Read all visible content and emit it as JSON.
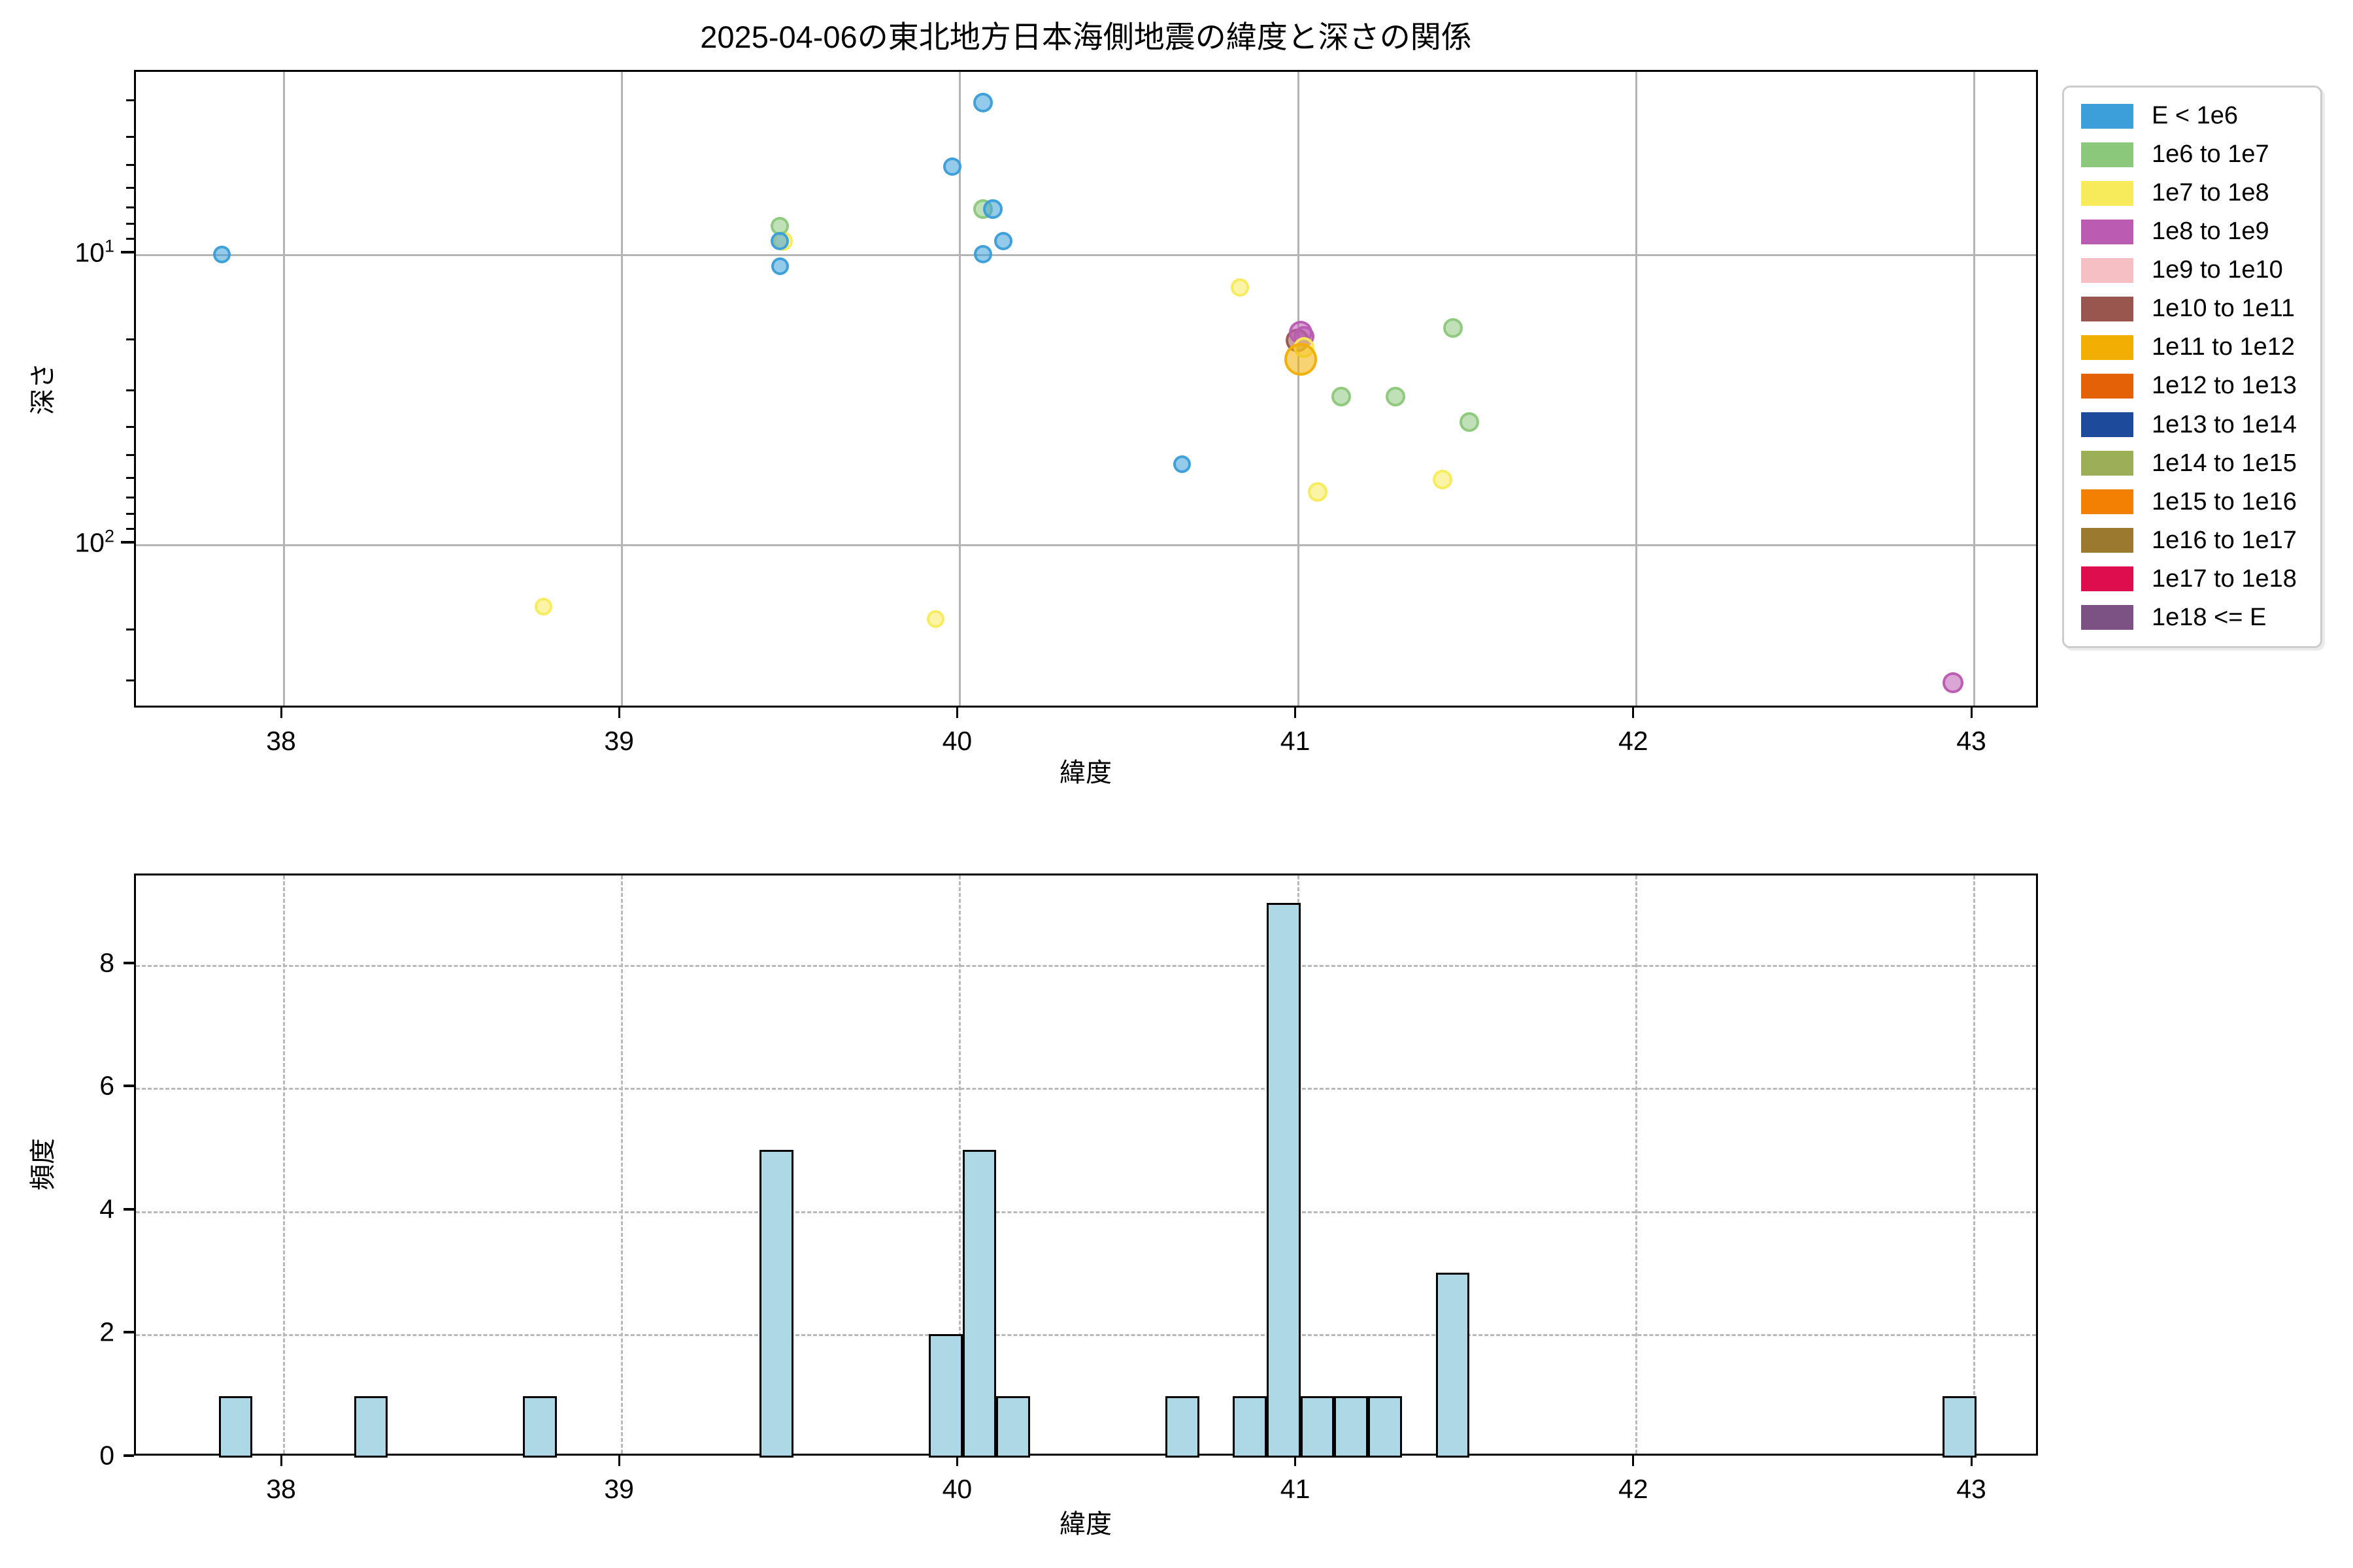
{
  "figure": {
    "title": "2025-04-06の東北地方日本海側地震の緯度と深さの関係"
  },
  "scatter_axis": {
    "xlabel": "緯度",
    "ylabel": "深さ",
    "x_ticks": [
      "38",
      "39",
      "40",
      "41",
      "42",
      "43"
    ],
    "y_major_ticks": [
      {
        "value": 10,
        "base": "10",
        "exp": "1"
      },
      {
        "value": 100,
        "base": "10",
        "exp": "2"
      }
    ],
    "y_minor_tick_depths": [
      3,
      4,
      5,
      6,
      7,
      8,
      9,
      20,
      30,
      40,
      50,
      60,
      70,
      80,
      90,
      200,
      300
    ]
  },
  "hist_axis": {
    "xlabel": "緯度",
    "ylabel": "頻度",
    "x_ticks": [
      "38",
      "39",
      "40",
      "41",
      "42",
      "43"
    ],
    "y_ticks": [
      "0",
      "2",
      "4",
      "6",
      "8"
    ]
  },
  "legend": {
    "entries": [
      {
        "label": "E < 1e6",
        "color": "#3c9fd9"
      },
      {
        "label": "1e6 to 1e7",
        "color": "#8cc87b"
      },
      {
        "label": "1e7 to 1e8",
        "color": "#f7eb5c"
      },
      {
        "label": "1e8 to 1e9",
        "color": "#ba5cb2"
      },
      {
        "label": "1e9 to 1e10",
        "color": "#f5bfc4"
      },
      {
        "label": "1e10 to 1e11",
        "color": "#99564f"
      },
      {
        "label": "1e11 to 1e12",
        "color": "#f2ae02"
      },
      {
        "label": "1e12 to 1e13",
        "color": "#e56107"
      },
      {
        "label": "1e13 to 1e14",
        "color": "#1e4a9c"
      },
      {
        "label": "1e14 to 1e15",
        "color": "#9caf56"
      },
      {
        "label": "1e15 to 1e16",
        "color": "#f28103"
      },
      {
        "label": "1e16 to 1e17",
        "color": "#997a2f"
      },
      {
        "label": "1e17 to 1e18",
        "color": "#de0d4d"
      },
      {
        "label": "1e18 <= E",
        "color": "#7c5184"
      }
    ]
  },
  "chart_data": [
    {
      "type": "scatter",
      "title": "2025-04-06の東北地方日本海側地震の緯度と深さの関係",
      "xlabel": "緯度",
      "ylabel": "深さ",
      "xlim": [
        37.56,
        43.2
      ],
      "ylim_depth_km_log_inverted": [
        2.35,
        372
      ],
      "x_ticks": [
        38,
        39,
        40,
        41,
        42,
        43
      ],
      "y_ticks_depth_km": [
        10,
        100
      ],
      "grid": "solid",
      "legend_position": "outside-upper-right",
      "series": [
        {
          "name": "1e10 to 1e11",
          "color": "#99564f",
          "points": [
            {
              "lat": 41.0,
              "depth": 19.8,
              "size": 36
            }
          ]
        },
        {
          "name": "1e8 to 1e9",
          "color": "#ba5cb2",
          "points": [
            {
              "lat": 41.01,
              "depth": 18.6,
              "size": 36
            },
            {
              "lat": 41.02,
              "depth": 19.2,
              "size": 32
            },
            {
              "lat": 42.94,
              "depth": 300,
              "size": 32
            }
          ]
        },
        {
          "name": "1e7 to 1e8",
          "color": "#f7eb5c",
          "points": [
            {
              "lat": 39.48,
              "depth": 9,
              "size": 30
            },
            {
              "lat": 38.77,
              "depth": 164,
              "size": 27
            },
            {
              "lat": 39.93,
              "depth": 181,
              "size": 27
            },
            {
              "lat": 40.83,
              "depth": 13,
              "size": 28
            },
            {
              "lat": 41.02,
              "depth": 21,
              "size": 32
            },
            {
              "lat": 41.06,
              "depth": 66,
              "size": 30
            },
            {
              "lat": 41.43,
              "depth": 60,
              "size": 30
            }
          ]
        },
        {
          "name": "1e11 to 1e12",
          "color": "#f2ae02",
          "points": [
            {
              "lat": 41.01,
              "depth": 23,
              "size": 50
            }
          ]
        },
        {
          "name": "1e6 to 1e7",
          "color": "#8cc87b",
          "points": [
            {
              "lat": 39.47,
              "depth": 8,
              "size": 28
            },
            {
              "lat": 40.07,
              "depth": 7,
              "size": 30
            },
            {
              "lat": 41.13,
              "depth": 31,
              "size": 30
            },
            {
              "lat": 41.29,
              "depth": 31,
              "size": 30
            },
            {
              "lat": 41.46,
              "depth": 18,
              "size": 30
            },
            {
              "lat": 41.51,
              "depth": 38,
              "size": 30
            }
          ]
        },
        {
          "name": "E < 1e6",
          "color": "#3c9fd9",
          "points": [
            {
              "lat": 37.82,
              "depth": 10,
              "size": 27
            },
            {
              "lat": 39.47,
              "depth": 9,
              "size": 28
            },
            {
              "lat": 39.47,
              "depth": 11,
              "size": 27
            },
            {
              "lat": 39.98,
              "depth": 5,
              "size": 28
            },
            {
              "lat": 40.07,
              "depth": 3,
              "size": 30
            },
            {
              "lat": 40.1,
              "depth": 7,
              "size": 30
            },
            {
              "lat": 40.13,
              "depth": 9,
              "size": 28
            },
            {
              "lat": 40.07,
              "depth": 10,
              "size": 28
            },
            {
              "lat": 40.66,
              "depth": 53,
              "size": 27
            }
          ]
        }
      ]
    },
    {
      "type": "bar",
      "xlabel": "緯度",
      "ylabel": "頻度",
      "xlim": [
        37.56,
        43.2
      ],
      "ylim": [
        0,
        9.45
      ],
      "x_ticks": [
        38,
        39,
        40,
        41,
        42,
        43
      ],
      "y_ticks": [
        0,
        2,
        4,
        6,
        8
      ],
      "grid": "dashed",
      "bar_color": "#add8e6",
      "bar_edge_color": "#000000",
      "bin_width": 0.1,
      "bars": [
        {
          "center": 37.86,
          "count": 1
        },
        {
          "center": 38.26,
          "count": 1
        },
        {
          "center": 38.76,
          "count": 1
        },
        {
          "center": 39.46,
          "count": 5
        },
        {
          "center": 39.96,
          "count": 2
        },
        {
          "center": 40.06,
          "count": 5
        },
        {
          "center": 40.16,
          "count": 1
        },
        {
          "center": 40.66,
          "count": 1
        },
        {
          "center": 40.86,
          "count": 1
        },
        {
          "center": 40.96,
          "count": 9
        },
        {
          "center": 41.06,
          "count": 1
        },
        {
          "center": 41.16,
          "count": 1
        },
        {
          "center": 41.26,
          "count": 1
        },
        {
          "center": 41.46,
          "count": 3
        },
        {
          "center": 42.96,
          "count": 1
        }
      ]
    }
  ]
}
